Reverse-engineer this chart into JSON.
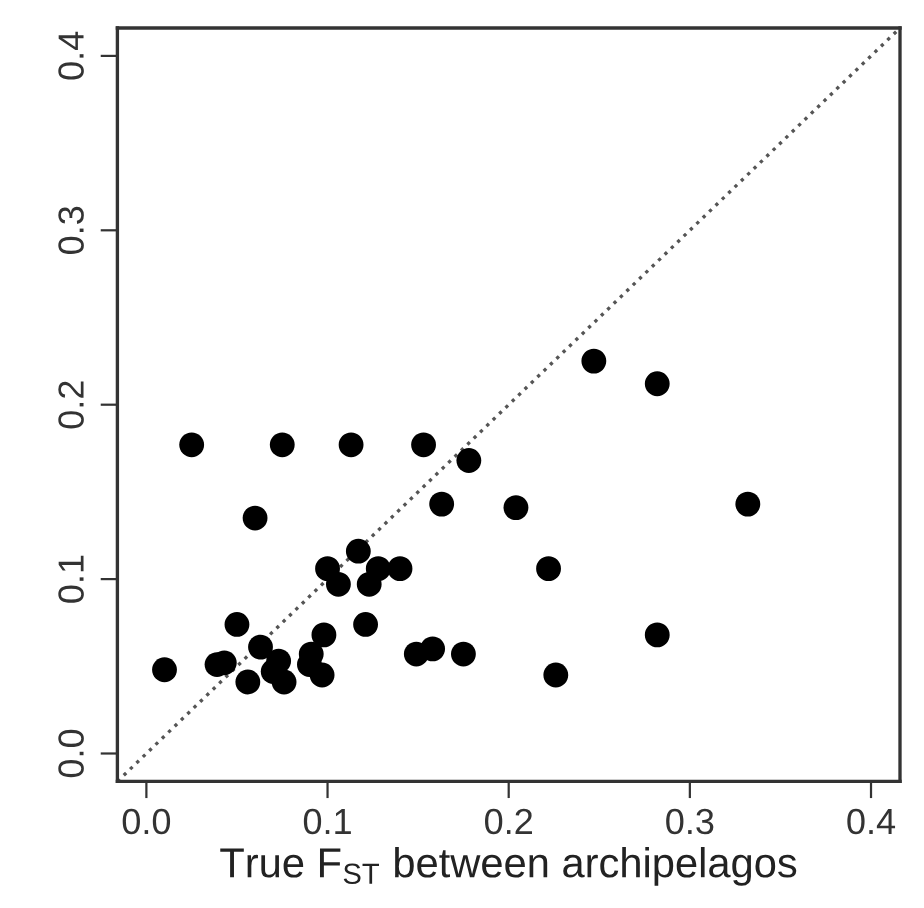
{
  "chart_data": {
    "type": "scatter",
    "xlabel": "True F$_{ST}$ between archipelagos",
    "xlim": [
      -0.016,
      0.416
    ],
    "ylim": [
      -0.016,
      0.416
    ],
    "xticks": [
      {
        "value": 0,
        "label": "0.0"
      },
      0.1,
      0.2,
      0.3,
      0.4
    ],
    "yticks": [
      {
        "value": 0,
        "label": "0.0"
      },
      0.1,
      0.2,
      0.3,
      0.4
    ],
    "grid": false,
    "legend": false,
    "marker": "circle",
    "series": [
      {
        "color": "#000000",
        "x": [
          0.01,
          0.025,
          0.075,
          0.113,
          0.153,
          0.178,
          0.06,
          0.163,
          0.204,
          0.332,
          0.247,
          0.282,
          0.117,
          0.1,
          0.106,
          0.123,
          0.128,
          0.14,
          0.222,
          0.05,
          0.121,
          0.098,
          0.282,
          0.063,
          0.091,
          0.149,
          0.158,
          0.175,
          0.039,
          0.043,
          0.073,
          0.07,
          0.056,
          0.076,
          0.09,
          0.097,
          0.226
        ],
        "values": [
          0.048,
          0.177,
          0.177,
          0.177,
          0.177,
          0.168,
          0.135,
          0.143,
          0.141,
          0.143,
          0.225,
          0.212,
          0.116,
          0.106,
          0.097,
          0.097,
          0.106,
          0.106,
          0.106,
          0.074,
          0.074,
          0.068,
          0.068,
          0.061,
          0.057,
          0.057,
          0.06,
          0.057,
          0.051,
          0.052,
          0.053,
          0.047,
          0.041,
          0.041,
          0.051,
          0.045,
          0.045
        ]
      },
      {
        "type": "line",
        "color": "#555555",
        "line_style": "dotted",
        "marker": "none",
        "x": [
          -0.016,
          0.416
        ],
        "values": [
          -0.016,
          0.416
        ]
      }
    ]
  }
}
